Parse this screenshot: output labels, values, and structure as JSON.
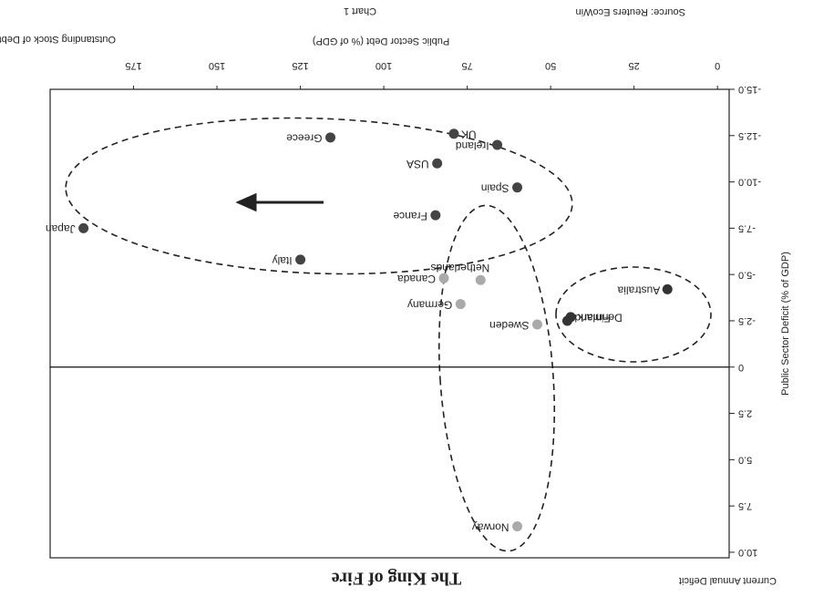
{
  "chart_data": {
    "type": "scatter",
    "title": "The King of Fire",
    "subtitle": "Chart 1",
    "x_label": "Public Sector Debt (% of GDP)",
    "y_label": "Public Sector Deficit (% of GDP)",
    "y_axis_note": "Current Annual Deficit",
    "x_axis_note": "Outstanding Stock of Debt",
    "source": "Source: Reuters EcoWin",
    "xlim": [
      -3.5,
      200
    ],
    "ylim": [
      -15,
      10.3
    ],
    "xticks": [
      0,
      25,
      50,
      75,
      100,
      125,
      150,
      175
    ],
    "yticks": [
      {
        "value": -15,
        "label": "-15.0"
      },
      -12.5,
      {
        "value": -10,
        "label": "-10.0"
      },
      -7.5,
      {
        "value": -5,
        "label": "-5.0"
      },
      -2.5,
      0,
      2.5,
      {
        "value": 5,
        "label": "5.0"
      },
      7.5,
      {
        "value": 10,
        "label": "10.0"
      }
    ],
    "points": [
      {
        "label": "Japan",
        "x": 190,
        "y": -7.5,
        "color": "#444444"
      },
      {
        "label": "Greece",
        "x": 116,
        "y": -12.4,
        "color": "#444444"
      },
      {
        "label": "UK",
        "x": 79,
        "y": -12.6,
        "color": "#444444"
      },
      {
        "label": "Ireland",
        "x": 66,
        "y": -12,
        "color": "#444444"
      },
      {
        "label": "USA",
        "x": 84,
        "y": -11,
        "color": "#444444"
      },
      {
        "label": "Spain",
        "x": 60,
        "y": -9.7,
        "color": "#444444"
      },
      {
        "label": "France",
        "x": 84.5,
        "y": -8.2,
        "color": "#444444"
      },
      {
        "label": "Italy",
        "x": 125,
        "y": -5.8,
        "color": "#444444"
      },
      {
        "label": "Canada",
        "x": 82,
        "y": -4.8,
        "color": "#aaaaaa"
      },
      {
        "label": "Netherlands",
        "x": 71,
        "y": -4.7,
        "color": "#aaaaaa"
      },
      {
        "label": "Germany",
        "x": 77,
        "y": -3.4,
        "color": "#aaaaaa"
      },
      {
        "label": "Sweden",
        "x": 54,
        "y": -2.3,
        "color": "#aaaaaa"
      },
      {
        "label": "Norway",
        "x": 60,
        "y": 8.6,
        "color": "#aaaaaa"
      },
      {
        "label": "Australia",
        "x": 15,
        "y": -4.2,
        "color": "#333333"
      },
      {
        "label": "Denmark",
        "x": 44,
        "y": -2.7,
        "color": "#333333"
      },
      {
        "label": "Finland",
        "x": 45,
        "y": -2.5,
        "color": "#333333"
      }
    ]
  }
}
